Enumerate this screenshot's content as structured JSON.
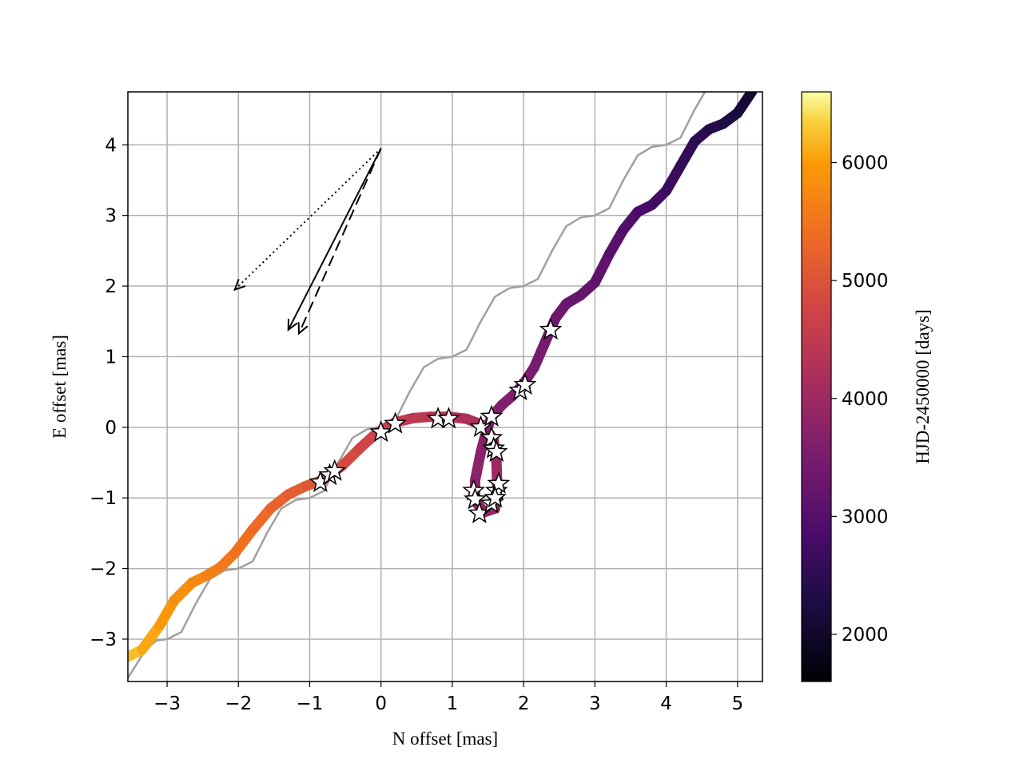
{
  "chart_data": {
    "type": "line",
    "xlabel": "N offset [mas]",
    "ylabel": "E offset [mas]",
    "xlim": [
      -3.55,
      5.35
    ],
    "ylim": [
      -3.6,
      4.75
    ],
    "x_ticks": [
      {
        "v": -3,
        "label": "−3"
      },
      {
        "v": -2,
        "label": "−2"
      },
      {
        "v": -1,
        "label": "−1"
      },
      {
        "v": 0,
        "label": "0"
      },
      {
        "v": 1,
        "label": "1"
      },
      {
        "v": 2,
        "label": "2"
      },
      {
        "v": 3,
        "label": "3"
      },
      {
        "v": 4,
        "label": "4"
      },
      {
        "v": 5,
        "label": "5"
      }
    ],
    "y_ticks": [
      {
        "v": -3,
        "label": "−3"
      },
      {
        "v": -2,
        "label": "−2"
      },
      {
        "v": -1,
        "label": "−1"
      },
      {
        "v": 0,
        "label": "0"
      },
      {
        "v": 1,
        "label": "1"
      },
      {
        "v": 2,
        "label": "2"
      },
      {
        "v": 3,
        "label": "3"
      },
      {
        "v": 4,
        "label": "4"
      }
    ],
    "grid": true,
    "colorbar": {
      "label": "HJD-2450000 [days]",
      "colormap": "inferno",
      "range": [
        1600,
        6600
      ],
      "ticks": [
        {
          "v": 2000,
          "label": "2000"
        },
        {
          "v": 3000,
          "label": "3000"
        },
        {
          "v": 4000,
          "label": "4000"
        },
        {
          "v": 5000,
          "label": "5000"
        },
        {
          "v": 6000,
          "label": "6000"
        }
      ]
    },
    "series": [
      {
        "kind": "model-no-companion",
        "color": "#a0a0a0",
        "points": [
          [
            -3.55,
            -3.55
          ],
          [
            -3.3,
            -3.15
          ],
          [
            -3.15,
            -3.02
          ],
          [
            -3.0,
            -3.0
          ],
          [
            -2.8,
            -2.9
          ],
          [
            -2.6,
            -2.5
          ],
          [
            -2.4,
            -2.15
          ],
          [
            -2.2,
            -2.03
          ],
          [
            -2.0,
            -2.0
          ],
          [
            -1.8,
            -1.9
          ],
          [
            -1.6,
            -1.5
          ],
          [
            -1.4,
            -1.15
          ],
          [
            -1.2,
            -1.03
          ],
          [
            -1.0,
            -1.0
          ],
          [
            -0.8,
            -0.9
          ],
          [
            -0.6,
            -0.5
          ],
          [
            -0.4,
            -0.15
          ],
          [
            -0.2,
            -0.03
          ],
          [
            0.0,
            0.0
          ],
          [
            0.2,
            0.1
          ],
          [
            0.4,
            0.5
          ],
          [
            0.6,
            0.85
          ],
          [
            0.8,
            0.97
          ],
          [
            1.0,
            1.0
          ],
          [
            1.2,
            1.1
          ],
          [
            1.4,
            1.5
          ],
          [
            1.6,
            1.85
          ],
          [
            1.8,
            1.97
          ],
          [
            2.0,
            2.0
          ],
          [
            2.2,
            2.1
          ],
          [
            2.4,
            2.5
          ],
          [
            2.6,
            2.85
          ],
          [
            2.8,
            2.97
          ],
          [
            3.0,
            3.0
          ],
          [
            3.2,
            3.1
          ],
          [
            3.4,
            3.5
          ],
          [
            3.6,
            3.85
          ],
          [
            3.8,
            3.97
          ],
          [
            4.0,
            4.0
          ],
          [
            4.2,
            4.1
          ],
          [
            4.4,
            4.5
          ],
          [
            4.6,
            4.85
          ]
        ]
      },
      {
        "kind": "orbit-model",
        "points": [
          [
            -3.55,
            -3.25,
            6300
          ],
          [
            -3.35,
            -3.15,
            6150
          ],
          [
            -3.1,
            -2.8,
            6000
          ],
          [
            -2.9,
            -2.45,
            5900
          ],
          [
            -2.65,
            -2.2,
            5800
          ],
          [
            -2.45,
            -2.1,
            5700
          ],
          [
            -2.25,
            -1.98,
            5600
          ],
          [
            -2.05,
            -1.78,
            5500
          ],
          [
            -1.8,
            -1.45,
            5400
          ],
          [
            -1.55,
            -1.15,
            5300
          ],
          [
            -1.3,
            -0.95,
            5200
          ],
          [
            -1.05,
            -0.83,
            5100
          ],
          [
            -0.8,
            -0.74,
            5000
          ],
          [
            -0.55,
            -0.55,
            4900
          ],
          [
            -0.3,
            -0.3,
            4800
          ],
          [
            -0.05,
            -0.07,
            4700
          ],
          [
            0.2,
            0.07,
            4600
          ],
          [
            0.45,
            0.13,
            4500
          ],
          [
            0.7,
            0.15,
            4420
          ],
          [
            0.95,
            0.15,
            4340
          ],
          [
            1.2,
            0.12,
            4260
          ],
          [
            1.45,
            0.02,
            4180
          ],
          [
            1.58,
            -0.18,
            4100
          ],
          [
            1.62,
            -0.5,
            4020
          ],
          [
            1.63,
            -0.85,
            3960
          ],
          [
            1.6,
            -1.15,
            3910
          ],
          [
            1.45,
            -1.2,
            3860
          ],
          [
            1.32,
            -1.05,
            3820
          ],
          [
            1.32,
            -0.75,
            3780
          ],
          [
            1.4,
            -0.35,
            3740
          ],
          [
            1.48,
            -0.05,
            3700
          ],
          [
            1.55,
            0.15,
            3660
          ],
          [
            1.7,
            0.32,
            3620
          ],
          [
            1.85,
            0.45,
            3580
          ],
          [
            2.0,
            0.62,
            3540
          ],
          [
            2.15,
            0.85,
            3500
          ],
          [
            2.3,
            1.2,
            3440
          ],
          [
            2.45,
            1.55,
            3380
          ],
          [
            2.6,
            1.75,
            3320
          ],
          [
            2.8,
            1.87,
            3260
          ],
          [
            3.0,
            2.05,
            3200
          ],
          [
            3.2,
            2.45,
            3100
          ],
          [
            3.4,
            2.8,
            3000
          ],
          [
            3.6,
            3.05,
            2900
          ],
          [
            3.8,
            3.15,
            2800
          ],
          [
            4.0,
            3.35,
            2700
          ],
          [
            4.2,
            3.7,
            2600
          ],
          [
            4.4,
            4.05,
            2500
          ],
          [
            4.6,
            4.22,
            2400
          ],
          [
            4.8,
            4.3,
            2300
          ],
          [
            5.0,
            4.45,
            2200
          ],
          [
            5.2,
            4.75,
            2100
          ]
        ]
      }
    ],
    "observations": [
      [
        -0.85,
        -0.78
      ],
      [
        -0.72,
        -0.68
      ],
      [
        -0.65,
        -0.62
      ],
      [
        0.0,
        -0.07
      ],
      [
        0.2,
        0.05
      ],
      [
        0.8,
        0.12
      ],
      [
        0.95,
        0.12
      ],
      [
        1.4,
        0.0
      ],
      [
        1.55,
        0.15
      ],
      [
        1.55,
        -0.15
      ],
      [
        1.58,
        -0.3
      ],
      [
        1.62,
        -0.35
      ],
      [
        1.3,
        -0.9
      ],
      [
        1.32,
        -1.02
      ],
      [
        1.38,
        -1.22
      ],
      [
        1.55,
        -1.08
      ],
      [
        1.62,
        -0.9
      ],
      [
        1.65,
        -0.8
      ],
      [
        1.6,
        -1.0
      ],
      [
        1.95,
        0.52
      ],
      [
        2.02,
        0.6
      ],
      [
        2.38,
        1.38
      ]
    ],
    "arrows": [
      {
        "style": "dotted",
        "from": [
          0.0,
          3.95
        ],
        "to": [
          -2.05,
          1.95
        ]
      },
      {
        "style": "solid",
        "from": [
          0.0,
          3.95
        ],
        "to": [
          -1.3,
          1.38
        ]
      },
      {
        "style": "dashed",
        "from": [
          0.0,
          3.95
        ],
        "to": [
          -1.15,
          1.33
        ]
      }
    ]
  }
}
